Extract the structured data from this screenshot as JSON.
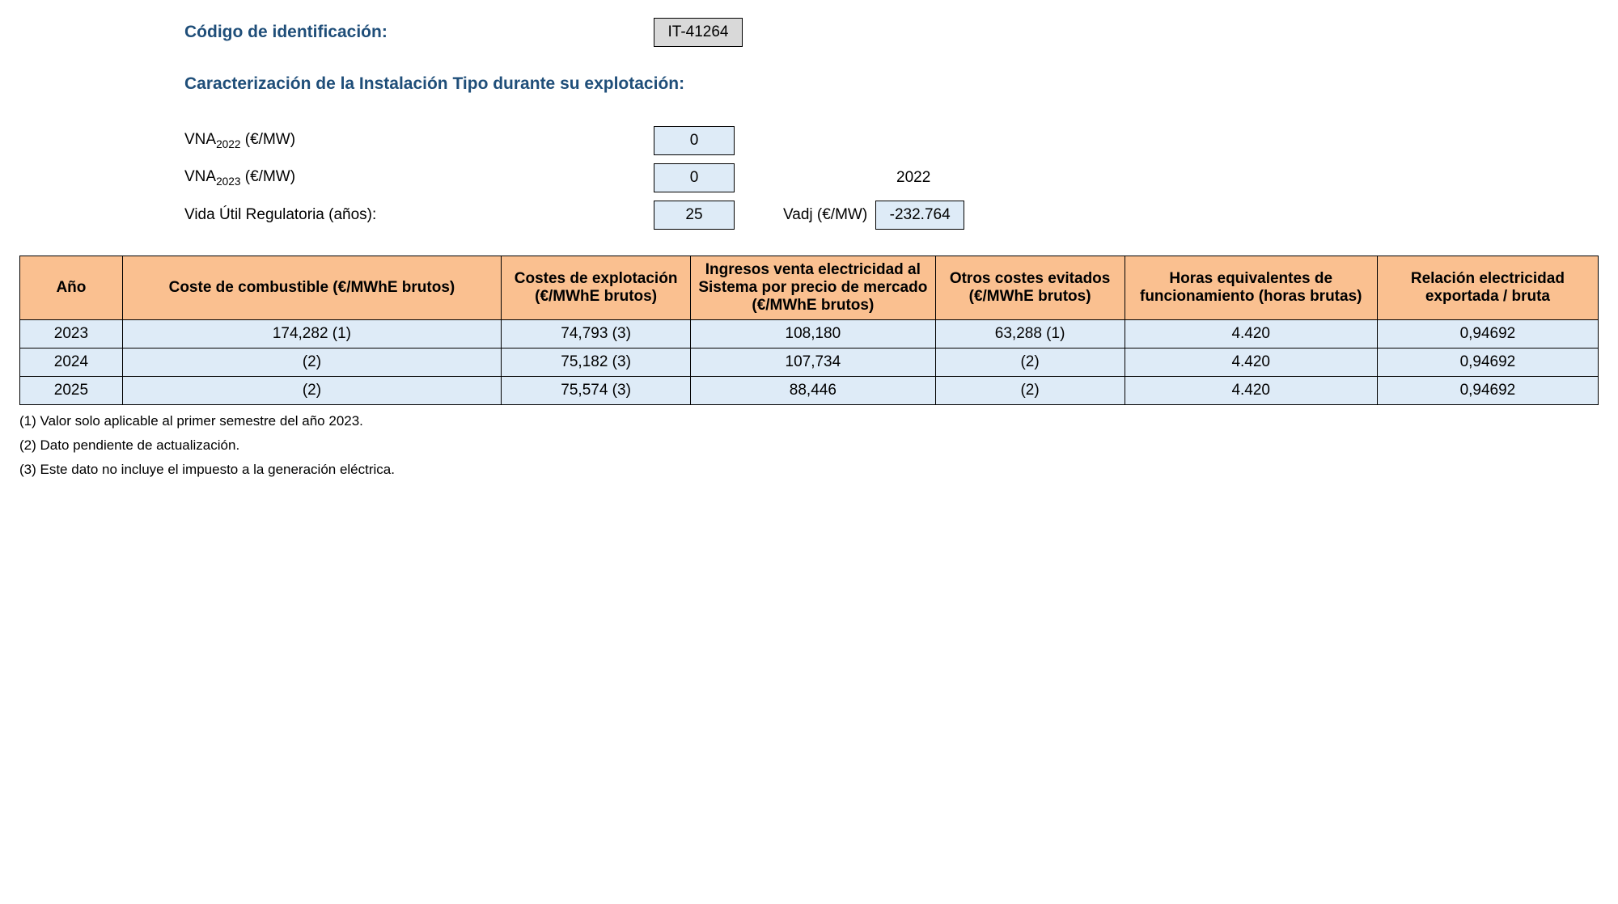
{
  "header": {
    "id_label": "Código de identificación:",
    "id_value": "IT-41264",
    "section_title": "Caracterización de la Instalación Tipo durante su explotación:"
  },
  "params": {
    "vna_2022": {
      "label_prefix": "VNA",
      "label_sub": "2022",
      "label_suffix": " (€/MW)",
      "value": "0"
    },
    "vna_2023": {
      "label_prefix": "VNA",
      "label_sub": "2023",
      "label_suffix": " (€/MW)",
      "value": "0"
    },
    "vida_util": {
      "label": "Vida Útil Regulatoria (años):",
      "value": "25"
    },
    "side_year": "2022",
    "vadj": {
      "label": "Vadj (€/MW)",
      "value": "-232.764"
    }
  },
  "table": {
    "columns": [
      "Año",
      "Coste de combustible (€/MWhE brutos)",
      "Costes de explotación (€/MWhE brutos)",
      "Ingresos venta electricidad al Sistema por precio de mercado (€/MWhE brutos)",
      "Otros costes evitados (€/MWhE brutos)",
      "Horas equivalentes de funcionamiento (horas brutas)",
      "Relación electricidad exportada / bruta"
    ],
    "col_widths_pct": [
      6.5,
      24,
      12,
      15.5,
      12,
      16,
      14
    ],
    "rows": [
      [
        "2023",
        "174,282 (1)",
        "74,793 (3)",
        "108,180",
        "63,288 (1)",
        "4.420",
        "0,94692"
      ],
      [
        "2024",
        "(2)",
        "75,182 (3)",
        "107,734",
        "(2)",
        "4.420",
        "0,94692"
      ],
      [
        "2025",
        "(2)",
        "75,574 (3)",
        "88,446",
        "(2)",
        "4.420",
        "0,94692"
      ]
    ],
    "header_bg": "#fac090",
    "cell_bg": "#deebf7"
  },
  "footnotes": [
    "(1) Valor solo aplicable al primer semestre del año 2023.",
    "(2) Dato pendiente de actualización.",
    "(3) Este dato no incluye el impuesto a la generación eléctrica."
  ]
}
